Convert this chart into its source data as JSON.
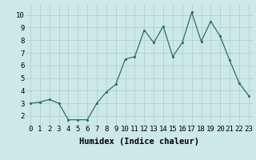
{
  "x": [
    0,
    1,
    2,
    3,
    4,
    5,
    6,
    7,
    8,
    9,
    10,
    11,
    12,
    13,
    14,
    15,
    16,
    17,
    18,
    19,
    20,
    21,
    22,
    23
  ],
  "y": [
    3.0,
    3.1,
    3.3,
    3.0,
    1.7,
    1.7,
    1.7,
    3.0,
    3.9,
    4.5,
    6.5,
    6.7,
    8.8,
    7.8,
    9.1,
    6.7,
    7.8,
    10.2,
    7.9,
    9.5,
    8.3,
    6.4,
    4.6,
    3.6
  ],
  "xlabel": "Humidex (Indice chaleur)",
  "ylim": [
    1.3,
    10.8
  ],
  "xlim": [
    -0.5,
    23.5
  ],
  "yticks": [
    2,
    3,
    4,
    5,
    6,
    7,
    8,
    9,
    10
  ],
  "line_color": "#2d6e6e",
  "marker_color": "#2d6e6e",
  "bg_color": "#cce8e8",
  "grid_color": "#aacccc",
  "tick_label_fontsize": 6.5,
  "xlabel_fontsize": 7.5
}
